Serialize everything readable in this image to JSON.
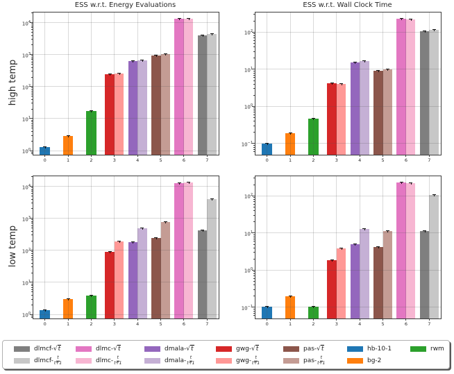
{
  "layout_labels": {
    "col_titles": [
      "ESS w.r.t. Energy Evaluations",
      "ESS w.r.t. Wall Clock Time"
    ],
    "row_labels": [
      "high temp",
      "low temp"
    ]
  },
  "x_tick_labels": [
    "0",
    "1",
    "2",
    "3",
    "4",
    "5",
    "6",
    "7"
  ],
  "colors": {
    "dlmcf-sqrt": "#7f7f7f",
    "dlmcf-frac": "#c7c7c7",
    "dlmc-sqrt": "#e377c2",
    "dlmc-frac": "#f7b6d2",
    "dmala-sqrt": "#9467bd",
    "dmala-frac": "#c5b0d5",
    "gwg-sqrt": "#d62728",
    "gwg-frac": "#ff9896",
    "pas-sqrt": "#8c564b",
    "pas-frac": "#c49c94",
    "hb-10-1": "#1f77b4",
    "bg-2": "#ff7f0e",
    "rwm": "#2ca02c"
  },
  "group_series": [
    [
      "hb-10-1"
    ],
    [
      "bg-2"
    ],
    [
      "rwm"
    ],
    [
      "gwg-sqrt",
      "gwg-frac"
    ],
    [
      "dmala-sqrt",
      "dmala-frac"
    ],
    [
      "pas-sqrt",
      "pas-frac"
    ],
    [
      "dlmc-sqrt",
      "dlmc-frac"
    ],
    [
      "dlmcf-sqrt",
      "dlmcf-frac"
    ]
  ],
  "chart_data": [
    {
      "type": "bar",
      "title": "ESS w.r.t. Energy Evaluations",
      "ylabel": "high temp",
      "yscale": "log",
      "ylim_exp": [
        -0.13,
        4.32
      ],
      "yticks_exp": [
        0,
        1,
        2,
        3,
        4
      ],
      "categories": [
        "0",
        "1",
        "2",
        "3",
        "4",
        "5",
        "6",
        "7"
      ],
      "values": {
        "hb-10-1": 1.3,
        "bg-2": 2.9,
        "rwm": 17,
        "gwg-sqrt": 245,
        "gwg-frac": 260,
        "dmala-sqrt": 620,
        "dmala-frac": 670,
        "pas-sqrt": 950,
        "pas-frac": 1020,
        "dlmc-sqrt": 13000,
        "dlmc-frac": 13400,
        "dlmcf-sqrt": 4100,
        "dlmcf-frac": 4400
      }
    },
    {
      "type": "bar",
      "title": "ESS w.r.t. Wall Clock Time",
      "ylabel": "",
      "yscale": "log",
      "ylim_exp": [
        -1.3,
        2.53
      ],
      "yticks_exp": [
        -1,
        0,
        1,
        2
      ],
      "categories": [
        "0",
        "1",
        "2",
        "3",
        "4",
        "5",
        "6",
        "7"
      ],
      "values": {
        "hb-10-1": 0.1,
        "bg-2": 0.19,
        "rwm": 0.46,
        "gwg-sqrt": 4.3,
        "gwg-frac": 4.0,
        "dmala-sqrt": 15.5,
        "dmala-frac": 16.8,
        "pas-sqrt": 9.3,
        "pas-frac": 9.9,
        "dlmc-sqrt": 230,
        "dlmc-frac": 218,
        "dlmcf-sqrt": 107,
        "dlmcf-frac": 117
      }
    },
    {
      "type": "bar",
      "title": "",
      "ylabel": "low temp",
      "yscale": "log",
      "ylim_exp": [
        -0.13,
        4.32
      ],
      "yticks_exp": [
        0,
        1,
        2,
        3,
        4
      ],
      "categories": [
        "0",
        "1",
        "2",
        "3",
        "4",
        "5",
        "6",
        "7"
      ],
      "values": {
        "hb-10-1": 1.35,
        "bg-2": 3.0,
        "rwm": 3.9,
        "gwg-sqrt": 88,
        "gwg-frac": 195,
        "dmala-sqrt": 185,
        "dmala-frac": 490,
        "pas-sqrt": 250,
        "pas-frac": 780,
        "dlmc-sqrt": 12800,
        "dlmc-frac": 13200,
        "dlmcf-sqrt": 420,
        "dlmcf-frac": 4000
      }
    },
    {
      "type": "bar",
      "title": "",
      "ylabel": "",
      "yscale": "log",
      "ylim_exp": [
        -1.3,
        2.53
      ],
      "yticks_exp": [
        -1,
        0,
        1,
        2
      ],
      "categories": [
        "0",
        "1",
        "2",
        "3",
        "4",
        "5",
        "6",
        "7"
      ],
      "values": {
        "hb-10-1": 0.105,
        "bg-2": 0.195,
        "rwm": 0.105,
        "gwg-sqrt": 1.85,
        "gwg-frac": 3.9,
        "dmala-sqrt": 5.0,
        "dmala-frac": 13.0,
        "pas-sqrt": 4.2,
        "pas-frac": 11.5,
        "dlmc-sqrt": 230,
        "dlmc-frac": 222,
        "dlmcf-sqrt": 11.5,
        "dlmcf-frac": 105
      }
    }
  ],
  "legend": {
    "sqrt_symbol": "√",
    "sqrt_arg": "t",
    "frac_num": "t",
    "frac_den": "t+1",
    "columns": [
      [
        {
          "series": "dlmcf-sqrt",
          "prefix": "dlmcf-",
          "schedule": "sqrt"
        },
        {
          "series": "dlmcf-frac",
          "prefix": "dlmcf-",
          "schedule": "frac"
        }
      ],
      [
        {
          "series": "dlmc-sqrt",
          "prefix": "dlmc-",
          "schedule": "sqrt"
        },
        {
          "series": "dlmc-frac",
          "prefix": "dlmc-",
          "schedule": "frac"
        }
      ],
      [
        {
          "series": "dmala-sqrt",
          "prefix": "dmala-",
          "schedule": "sqrt"
        },
        {
          "series": "dmala-frac",
          "prefix": "dmala-",
          "schedule": "frac"
        }
      ],
      [
        {
          "series": "gwg-sqrt",
          "prefix": "gwg-",
          "schedule": "sqrt"
        },
        {
          "series": "gwg-frac",
          "prefix": "gwg-",
          "schedule": "frac"
        }
      ],
      [
        {
          "series": "pas-sqrt",
          "prefix": "pas-",
          "schedule": "sqrt"
        },
        {
          "series": "pas-frac",
          "prefix": "pas-",
          "schedule": "frac"
        }
      ],
      [
        {
          "series": "hb-10-1",
          "label": "hb-10-1"
        },
        {
          "series": "bg-2",
          "label": "bg-2"
        }
      ],
      [
        {
          "series": "rwm",
          "label": "rwm"
        }
      ]
    ]
  }
}
